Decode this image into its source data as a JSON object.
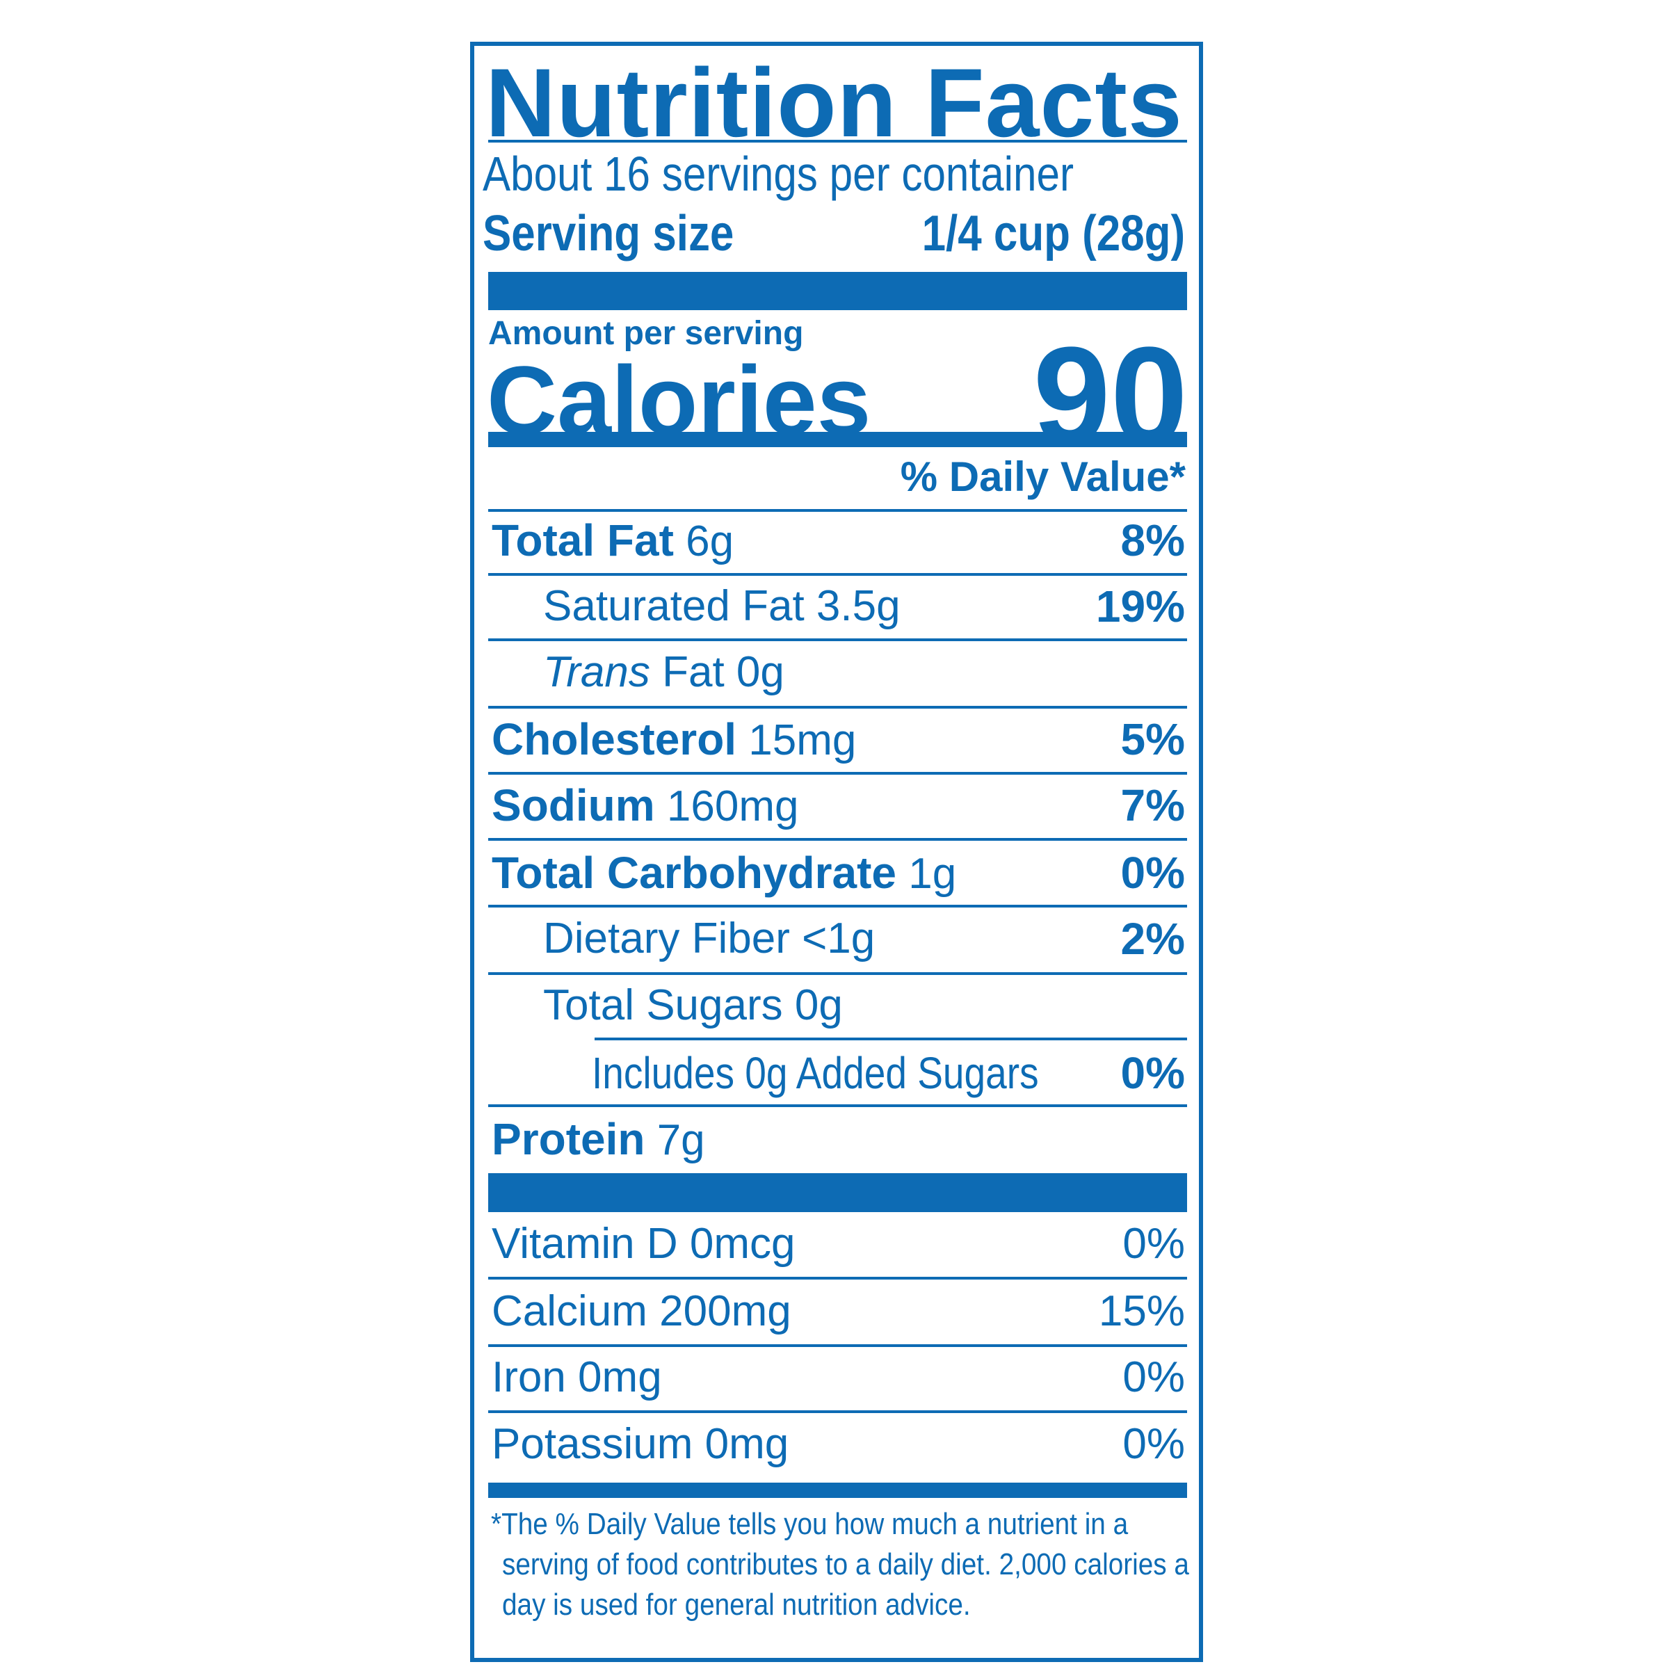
{
  "title": "Nutrition Facts",
  "servings_per_container": "About 16 servings per container",
  "serving_size_label": "Serving size",
  "serving_size_value": "1/4 cup (28g)",
  "amount_per_serving": "Amount per serving",
  "calories_label": "Calories",
  "calories_value": "90",
  "daily_value_header": "% Daily Value*",
  "nutrients": [
    {
      "name": "Total Fat",
      "amount": "6g",
      "dv": "8%"
    },
    {
      "name": "Saturated Fat 3.5g",
      "amount": "",
      "dv": "19%"
    },
    {
      "name": "Trans",
      "amount": "Fat 0g",
      "dv": ""
    },
    {
      "name": "Cholesterol",
      "amount": "15mg",
      "dv": "5%"
    },
    {
      "name": "Sodium",
      "amount": "160mg",
      "dv": "7%"
    },
    {
      "name": "Total Carbohydrate",
      "amount": "1g",
      "dv": "0%"
    },
    {
      "name": "Dietary Fiber <1g",
      "amount": "",
      "dv": "2%"
    },
    {
      "name": "Total Sugars 0g",
      "amount": "",
      "dv": ""
    },
    {
      "name": "Includes 0g Added Sugars",
      "amount": "",
      "dv": "0%"
    },
    {
      "name": "Protein",
      "amount": "7g",
      "dv": ""
    }
  ],
  "vitamins": [
    {
      "name": "Vitamin D 0mcg",
      "dv": "0%"
    },
    {
      "name": "Calcium 200mg",
      "dv": "15%"
    },
    {
      "name": "Iron 0mg",
      "dv": "0%"
    },
    {
      "name": "Potassium 0mg",
      "dv": "0%"
    }
  ],
  "footnote": [
    "*The % Daily Value tells you how much a nutrient in a",
    "serving of food contributes to a daily diet. 2,000 calories a",
    "day is used for general nutrition advice."
  ],
  "colors": {
    "ink": "#0d6bb4",
    "background": "#ffffff"
  }
}
